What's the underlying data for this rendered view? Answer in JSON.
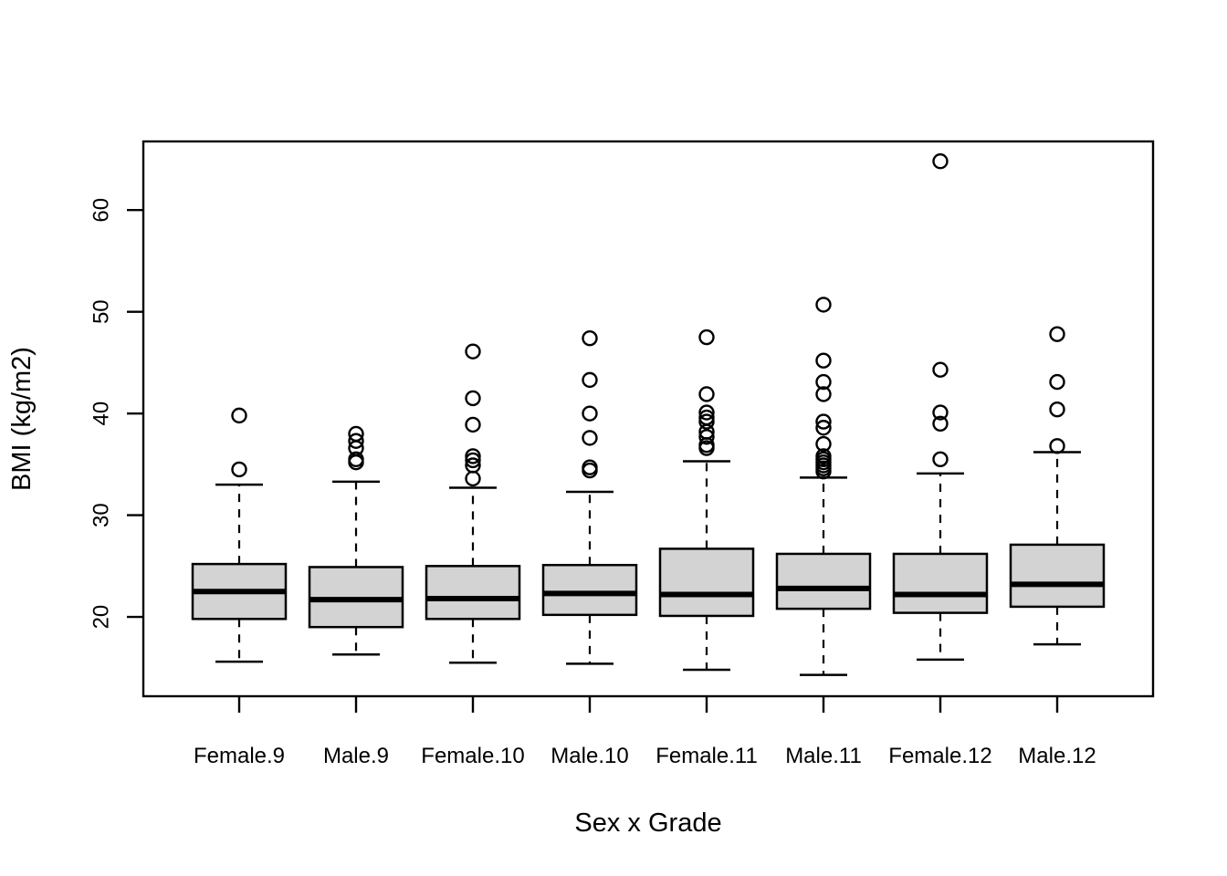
{
  "figure": {
    "background": "#ffffff"
  },
  "chart_data": {
    "type": "boxplot",
    "title": "",
    "xlabel": "Sex x Grade",
    "ylabel": "BMI (kg/m2)",
    "ylim": [
      12.2,
      66.75
    ],
    "y_ticks": [
      20,
      30,
      40,
      50,
      60
    ],
    "grid": "off",
    "legend": "none",
    "box_fill": "#d3d3d3",
    "line_color": "#000000",
    "categories": [
      "Female.9",
      "Male.9",
      "Female.10",
      "Male.10",
      "Female.11",
      "Male.11",
      "Female.12",
      "Male.12"
    ],
    "series": [
      {
        "label": "Female.9",
        "whisker_low": 15.6,
        "q1": 19.8,
        "median": 22.5,
        "q3": 25.2,
        "whisker_high": 33.0,
        "outliers": [
          34.5,
          39.8
        ]
      },
      {
        "label": "Male.9",
        "whisker_low": 16.3,
        "q1": 19.0,
        "median": 21.7,
        "q3": 24.9,
        "whisker_high": 33.3,
        "outliers": [
          35.2,
          35.5,
          36.6,
          37.3,
          38.0
        ]
      },
      {
        "label": "Female.10",
        "whisker_low": 15.5,
        "q1": 19.8,
        "median": 21.8,
        "q3": 25.0,
        "whisker_high": 32.7,
        "outliers": [
          33.6,
          34.9,
          35.4,
          35.8,
          38.9,
          41.5,
          46.1
        ]
      },
      {
        "label": "Male.10",
        "whisker_low": 15.4,
        "q1": 20.2,
        "median": 22.3,
        "q3": 25.1,
        "whisker_high": 32.3,
        "outliers": [
          34.4,
          34.7,
          37.6,
          40.0,
          43.3,
          47.4
        ]
      },
      {
        "label": "Female.11",
        "whisker_low": 14.8,
        "q1": 20.1,
        "median": 22.2,
        "q3": 26.7,
        "whisker_high": 35.3,
        "outliers": [
          36.6,
          36.9,
          37.7,
          38.2,
          39.2,
          39.6,
          40.1,
          41.9,
          47.5
        ]
      },
      {
        "label": "Male.11",
        "whisker_low": 14.3,
        "q1": 20.8,
        "median": 22.8,
        "q3": 26.2,
        "whisker_high": 33.7,
        "outliers": [
          34.3,
          34.6,
          34.9,
          35.2,
          35.5,
          35.8,
          37.0,
          38.6,
          39.2,
          41.9,
          43.1,
          45.2,
          50.7
        ]
      },
      {
        "label": "Female.12",
        "whisker_low": 15.8,
        "q1": 20.4,
        "median": 22.2,
        "q3": 26.2,
        "whisker_high": 34.1,
        "outliers": [
          35.5,
          39.0,
          40.1,
          44.3,
          64.8
        ]
      },
      {
        "label": "Male.12",
        "whisker_low": 17.3,
        "q1": 21.0,
        "median": 23.2,
        "q3": 27.1,
        "whisker_high": 36.2,
        "outliers": [
          36.8,
          40.4,
          43.1,
          47.8
        ]
      }
    ]
  }
}
